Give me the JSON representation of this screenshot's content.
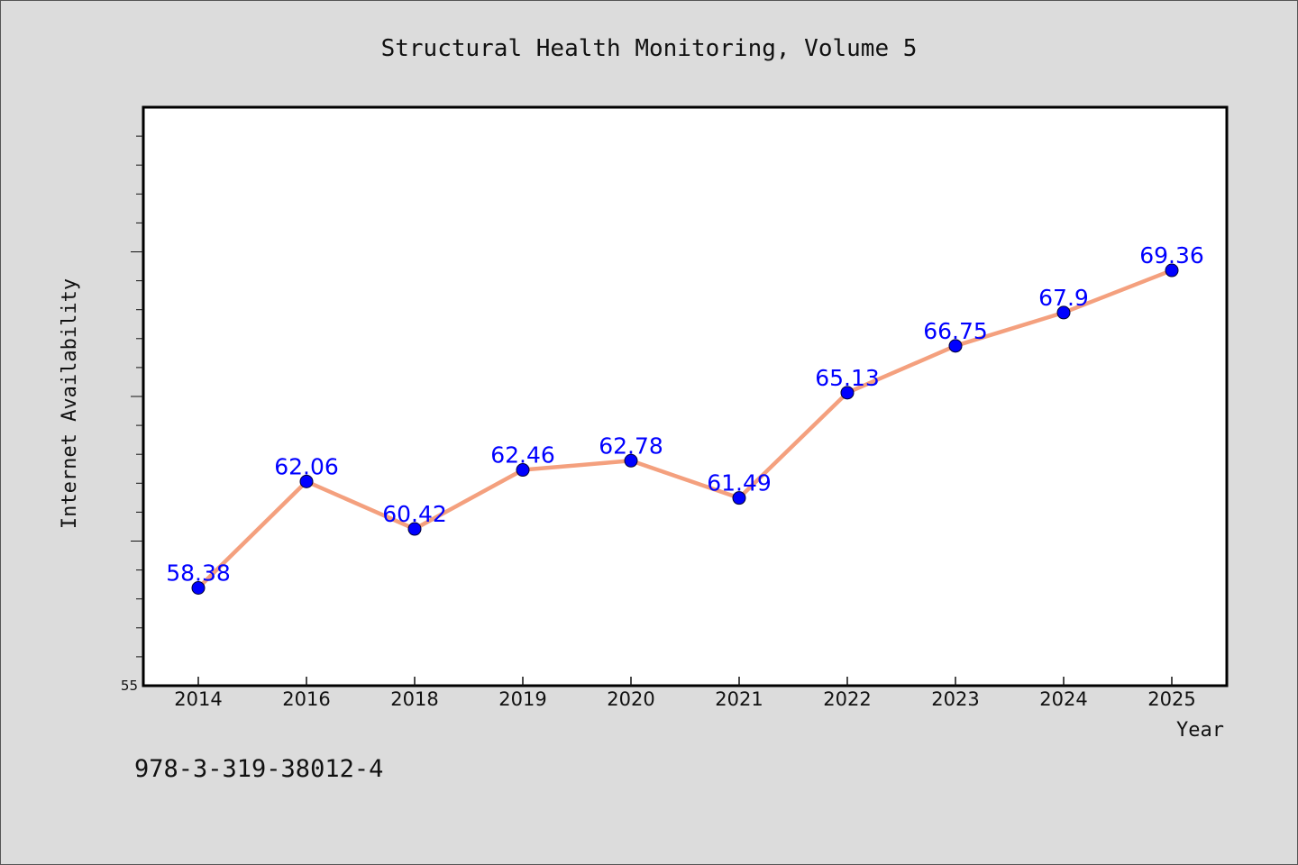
{
  "chart_data": {
    "type": "line",
    "title": "Structural Health Monitoring, Volume 5",
    "xlabel": "Year",
    "ylabel": "Internet Availability",
    "categories": [
      "2014",
      "2016",
      "2018",
      "2019",
      "2020",
      "2021",
      "2022",
      "2023",
      "2024",
      "2025"
    ],
    "series": [
      {
        "values": [
          58.38,
          62.06,
          60.42,
          62.46,
          62.78,
          61.49,
          65.13,
          66.75,
          67.9,
          69.36
        ],
        "data_labels": [
          "58.38",
          "62.06",
          "60.42",
          "62.46",
          "62.78",
          "61.49",
          "65.13",
          "66.75",
          "67.9",
          "69.36"
        ]
      }
    ],
    "ylim": [
      55,
      75
    ],
    "yticks": [
      55
    ],
    "ytick_labels": [
      "55"
    ],
    "grid": false,
    "line_color": "#f4a07e",
    "marker_color": "#0000ff",
    "label_color": "#0000ff",
    "background_color": "#dcdcdc",
    "plot_background_color": "#ffffff"
  },
  "footer": {
    "isbn": "978-3-319-38012-4"
  }
}
